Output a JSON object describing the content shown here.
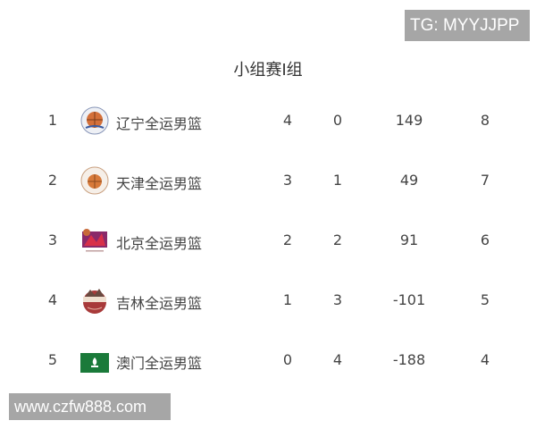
{
  "watermarks": {
    "top": "TG: MYYJJPP",
    "bottom": "www.czfw888.com"
  },
  "title": "小组赛I组",
  "rows": [
    {
      "rank": "1",
      "team": "辽宁全运男篮",
      "logo": "liaoning-logo-icon",
      "wins": "4",
      "losses": "0",
      "diff": "149",
      "points": "8"
    },
    {
      "rank": "2",
      "team": "天津全运男篮",
      "logo": "tianjin-logo-icon",
      "wins": "3",
      "losses": "1",
      "diff": "49",
      "points": "7"
    },
    {
      "rank": "3",
      "team": "北京全运男篮",
      "logo": "beijing-logo-icon",
      "wins": "2",
      "losses": "2",
      "diff": "91",
      "points": "6"
    },
    {
      "rank": "4",
      "team": "吉林全运男篮",
      "logo": "jilin-logo-icon",
      "wins": "1",
      "losses": "3",
      "diff": "-101",
      "points": "5"
    },
    {
      "rank": "5",
      "team": "澳门全运男篮",
      "logo": "macau-flag-icon",
      "wins": "0",
      "losses": "4",
      "diff": "-188",
      "points": "4"
    }
  ]
}
